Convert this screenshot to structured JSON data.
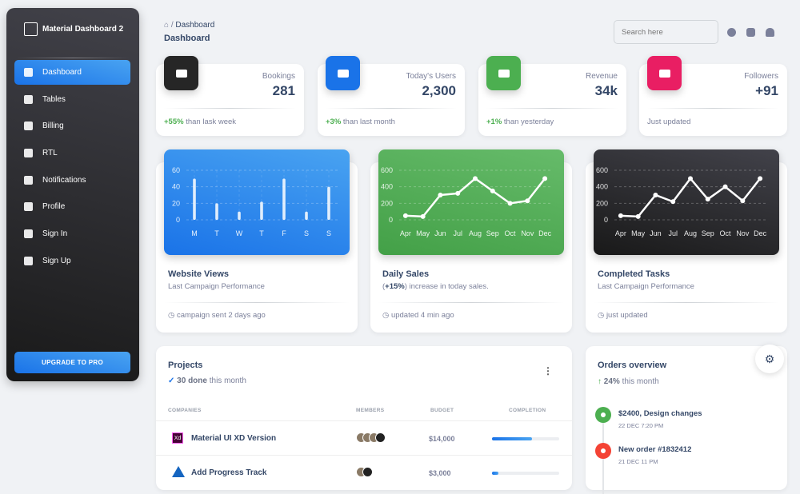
{
  "sidebar": {
    "brand": "Material Dashboard 2",
    "items": [
      {
        "label": "Dashboard",
        "icon": "dashboard-icon",
        "active": true
      },
      {
        "label": "Tables",
        "icon": "table-icon"
      },
      {
        "label": "Billing",
        "icon": "receipt-icon"
      },
      {
        "label": "RTL",
        "icon": "rtl-icon"
      },
      {
        "label": "Notifications",
        "icon": "bell-icon"
      },
      {
        "label": "Profile",
        "icon": "person-icon"
      },
      {
        "label": "Sign In",
        "icon": "login-icon"
      },
      {
        "label": "Sign Up",
        "icon": "assignment-icon"
      }
    ],
    "upgrade": "UPGRADE TO PRO"
  },
  "header": {
    "breadcrumb_sep": "/",
    "breadcrumb": "Dashboard",
    "title": "Dashboard",
    "search_placeholder": "Search here"
  },
  "stats": [
    {
      "label": "Bookings",
      "value": "281",
      "delta": "+55%",
      "note": " than lask week",
      "color": "#262626"
    },
    {
      "label": "Today's Users",
      "value": "2,300",
      "delta": "+3%",
      "note": " than last month",
      "color": "#1a73e8"
    },
    {
      "label": "Revenue",
      "value": "34k",
      "delta": "+1%",
      "note": " than yesterday",
      "color": "#4caf50"
    },
    {
      "label": "Followers",
      "value": "+91",
      "delta": "",
      "note": "Just updated",
      "color": "#e91e63"
    }
  ],
  "charts": [
    {
      "title": "Website Views",
      "subtitle": "Last Campaign Performance",
      "footer": "campaign sent 2 days ago"
    },
    {
      "title": "Daily Sales",
      "subtitle_delta": "+15%",
      "subtitle_pre": "(",
      "subtitle_post": ") increase in today sales.",
      "footer": "updated 4 min ago"
    },
    {
      "title": "Completed Tasks",
      "subtitle": "Last Campaign Performance",
      "footer": "just updated"
    }
  ],
  "chart_data": [
    {
      "type": "bar",
      "categories": [
        "M",
        "T",
        "W",
        "T",
        "F",
        "S",
        "S"
      ],
      "values": [
        50,
        20,
        10,
        22,
        50,
        10,
        40
      ],
      "ylim": [
        0,
        60
      ],
      "yticks": [
        0,
        20,
        40,
        60
      ],
      "grid": true,
      "background": "#1a73e8"
    },
    {
      "type": "line",
      "categories": [
        "Apr",
        "May",
        "Jun",
        "Jul",
        "Aug",
        "Sep",
        "Oct",
        "Nov",
        "Dec"
      ],
      "values": [
        50,
        40,
        300,
        320,
        500,
        350,
        200,
        230,
        500
      ],
      "ylim": [
        0,
        600
      ],
      "yticks": [
        0,
        200,
        400,
        600
      ],
      "grid": true,
      "background": "#4caf50"
    },
    {
      "type": "line",
      "categories": [
        "Apr",
        "May",
        "Jun",
        "Jul",
        "Aug",
        "Sep",
        "Oct",
        "Nov",
        "Dec"
      ],
      "values": [
        50,
        40,
        300,
        220,
        500,
        250,
        400,
        230,
        500
      ],
      "ylim": [
        0,
        600
      ],
      "yticks": [
        0,
        200,
        400,
        600
      ],
      "grid": true,
      "background": "#262626"
    }
  ],
  "projects": {
    "title": "Projects",
    "done": "30 done",
    "done_suffix": " this month",
    "columns": [
      "COMPANIES",
      "MEMBERS",
      "BUDGET",
      "COMPLETION"
    ],
    "rows": [
      {
        "name": "Material UI XD Version",
        "logo": "Xd",
        "members": 4,
        "budget": "$14,000",
        "completion": 60
      },
      {
        "name": "Add Progress Track",
        "logo": "atlassian-icon",
        "members": 2,
        "budget": "$3,000",
        "completion": 10
      }
    ]
  },
  "orders": {
    "title": "Orders overview",
    "delta": "24%",
    "delta_suffix": " this month",
    "items": [
      {
        "title": "$2400, Design changes",
        "date": "22 DEC 7:20 PM",
        "color": "#4caf50",
        "icon": "bell-icon"
      },
      {
        "title": "New order #1832412",
        "date": "21 DEC 11 PM",
        "color": "#f44335",
        "icon": "cart-icon"
      }
    ]
  }
}
